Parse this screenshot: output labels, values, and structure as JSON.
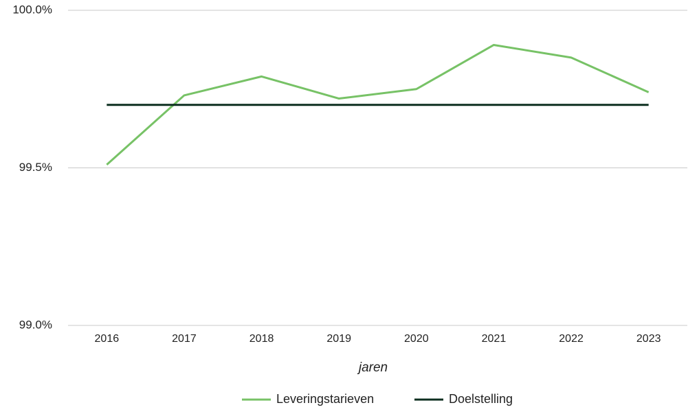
{
  "chart_data": {
    "type": "line",
    "x_label": "jaren",
    "categories": [
      "2016",
      "2017",
      "2018",
      "2019",
      "2020",
      "2021",
      "2022",
      "2023"
    ],
    "series": [
      {
        "name": "Leveringstarieven",
        "color": "#77c266",
        "values": [
          99.51,
          99.73,
          99.79,
          99.72,
          99.75,
          99.89,
          99.85,
          99.74
        ]
      },
      {
        "name": "Doelstelling",
        "color": "#0c2e1f",
        "values": [
          99.7,
          99.7,
          99.7,
          99.7,
          99.7,
          99.7,
          99.7,
          99.7
        ]
      }
    ],
    "ylim": [
      99.0,
      100.0
    ],
    "yticks": [
      {
        "value": 99.0,
        "label": "99.0%"
      },
      {
        "value": 99.5,
        "label": "99.5%"
      },
      {
        "value": 100.0,
        "label": "100.0%"
      }
    ],
    "grid": true,
    "legend": "bottom"
  }
}
